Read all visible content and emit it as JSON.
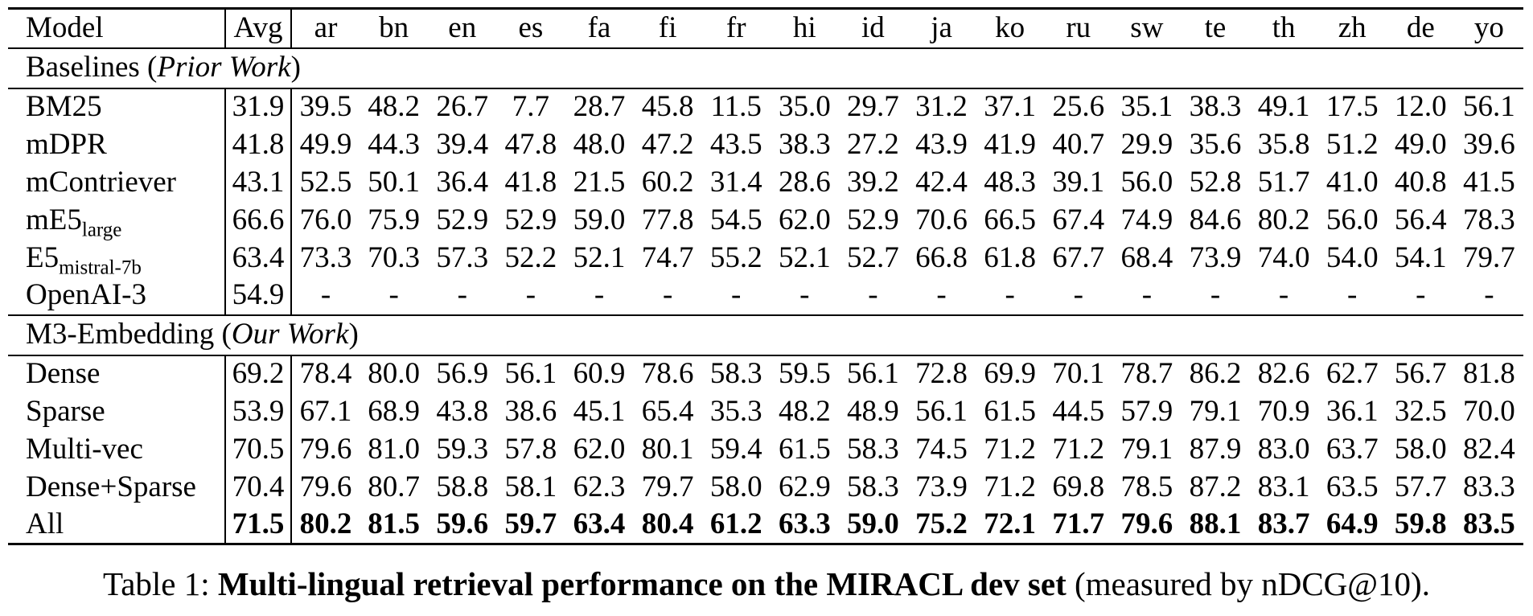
{
  "table": {
    "columns": [
      "Model",
      "Avg",
      "ar",
      "bn",
      "en",
      "es",
      "fa",
      "fi",
      "fr",
      "hi",
      "id",
      "ja",
      "ko",
      "ru",
      "sw",
      "te",
      "th",
      "zh",
      "de",
      "yo"
    ],
    "sections": [
      {
        "header": {
          "prefix": "Baselines (",
          "italic": "Prior Work",
          "suffix": ")"
        },
        "rows": [
          {
            "model": "BM25",
            "sub": "",
            "avg": "31.9",
            "bold": false,
            "values": [
              "39.5",
              "48.2",
              "26.7",
              "7.7",
              "28.7",
              "45.8",
              "11.5",
              "35.0",
              "29.7",
              "31.2",
              "37.1",
              "25.6",
              "35.1",
              "38.3",
              "49.1",
              "17.5",
              "12.0",
              "56.1"
            ]
          },
          {
            "model": "mDPR",
            "sub": "",
            "avg": "41.8",
            "bold": false,
            "values": [
              "49.9",
              "44.3",
              "39.4",
              "47.8",
              "48.0",
              "47.2",
              "43.5",
              "38.3",
              "27.2",
              "43.9",
              "41.9",
              "40.7",
              "29.9",
              "35.6",
              "35.8",
              "51.2",
              "49.0",
              "39.6"
            ]
          },
          {
            "model": "mContriever",
            "sub": "",
            "avg": "43.1",
            "bold": false,
            "values": [
              "52.5",
              "50.1",
              "36.4",
              "41.8",
              "21.5",
              "60.2",
              "31.4",
              "28.6",
              "39.2",
              "42.4",
              "48.3",
              "39.1",
              "56.0",
              "52.8",
              "51.7",
              "41.0",
              "40.8",
              "41.5"
            ]
          },
          {
            "model": "mE5",
            "sub": "large",
            "avg": "66.6",
            "bold": false,
            "values": [
              "76.0",
              "75.9",
              "52.9",
              "52.9",
              "59.0",
              "77.8",
              "54.5",
              "62.0",
              "52.9",
              "70.6",
              "66.5",
              "67.4",
              "74.9",
              "84.6",
              "80.2",
              "56.0",
              "56.4",
              "78.3"
            ]
          },
          {
            "model": "E5",
            "sub": "mistral-7b",
            "avg": "63.4",
            "bold": false,
            "values": [
              "73.3",
              "70.3",
              "57.3",
              "52.2",
              "52.1",
              "74.7",
              "55.2",
              "52.1",
              "52.7",
              "66.8",
              "61.8",
              "67.7",
              "68.4",
              "73.9",
              "74.0",
              "54.0",
              "54.1",
              "79.7"
            ]
          },
          {
            "model": "OpenAI-3",
            "sub": "",
            "avg": "54.9",
            "bold": false,
            "values": [
              "-",
              "-",
              "-",
              "-",
              "-",
              "-",
              "-",
              "-",
              "-",
              "-",
              "-",
              "-",
              "-",
              "-",
              "-",
              "-",
              "-",
              "-"
            ]
          }
        ]
      },
      {
        "header": {
          "prefix": "M3-Embedding (",
          "italic": "Our Work",
          "suffix": ")"
        },
        "rows": [
          {
            "model": "Dense",
            "sub": "",
            "avg": "69.2",
            "bold": false,
            "values": [
              "78.4",
              "80.0",
              "56.9",
              "56.1",
              "60.9",
              "78.6",
              "58.3",
              "59.5",
              "56.1",
              "72.8",
              "69.9",
              "70.1",
              "78.7",
              "86.2",
              "82.6",
              "62.7",
              "56.7",
              "81.8"
            ]
          },
          {
            "model": "Sparse",
            "sub": "",
            "avg": "53.9",
            "bold": false,
            "values": [
              "67.1",
              "68.9",
              "43.8",
              "38.6",
              "45.1",
              "65.4",
              "35.3",
              "48.2",
              "48.9",
              "56.1",
              "61.5",
              "44.5",
              "57.9",
              "79.1",
              "70.9",
              "36.1",
              "32.5",
              "70.0"
            ]
          },
          {
            "model": "Multi-vec",
            "sub": "",
            "avg": "70.5",
            "bold": false,
            "values": [
              "79.6",
              "81.0",
              "59.3",
              "57.8",
              "62.0",
              "80.1",
              "59.4",
              "61.5",
              "58.3",
              "74.5",
              "71.2",
              "71.2",
              "79.1",
              "87.9",
              "83.0",
              "63.7",
              "58.0",
              "82.4"
            ]
          },
          {
            "model": "Dense+Sparse",
            "sub": "",
            "avg": "70.4",
            "bold": false,
            "values": [
              "79.6",
              "80.7",
              "58.8",
              "58.1",
              "62.3",
              "79.7",
              "58.0",
              "62.9",
              "58.3",
              "73.9",
              "71.2",
              "69.8",
              "78.5",
              "87.2",
              "83.1",
              "63.5",
              "57.7",
              "83.3"
            ]
          },
          {
            "model": "All",
            "sub": "",
            "avg": "71.5",
            "bold": true,
            "values": [
              "80.2",
              "81.5",
              "59.6",
              "59.7",
              "63.4",
              "80.4",
              "61.2",
              "63.3",
              "59.0",
              "75.2",
              "72.1",
              "71.7",
              "79.6",
              "88.1",
              "83.7",
              "64.9",
              "59.8",
              "83.5"
            ]
          }
        ]
      }
    ]
  },
  "caption": {
    "label": "Table 1: ",
    "bold": "Multi-lingual retrieval performance on the MIRACL dev set",
    "rest": " (measured by nDCG@10)."
  }
}
